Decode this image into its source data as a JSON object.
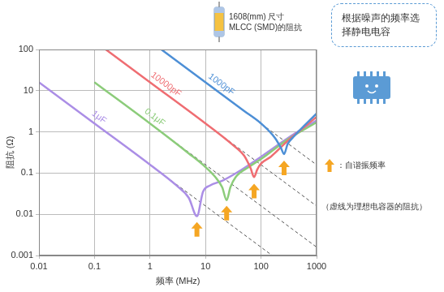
{
  "chart_data": {
    "type": "line",
    "title": [
      "1608(mm) 尺寸",
      "MLCC (SMD)的阻抗"
    ],
    "annotations": [
      "根据噪声的频率选择静电电容",
      "（虚线为理想电容器的阻抗）"
    ],
    "x_label": "频率 (MHz)",
    "y_label": "阻抗 (Ω)",
    "log": true,
    "grid": true,
    "legend": "right",
    "xlim": [
      0.01,
      1000
    ],
    "ylim": [
      0.001,
      100
    ],
    "xticks": [
      0.01,
      0.1,
      1,
      10,
      100,
      1000
    ],
    "yticks": [
      0.001,
      0.01,
      0.1,
      1,
      10,
      100
    ],
    "series": [
      {
        "name": "1000pF",
        "color": "#4d8fd6",
        "line_style": "solid",
        "x": [
          1.6,
          10,
          50,
          100,
          180,
          230,
          260,
          300,
          400,
          1000
        ],
        "values": [
          100,
          16,
          3.2,
          1.6,
          0.7,
          0.4,
          0.29,
          0.5,
          0.8,
          2.8
        ]
      },
      {
        "name": "10000pF",
        "color": "#ef6d72",
        "line_style": "solid",
        "x": [
          0.16,
          1,
          10,
          30,
          50,
          65,
          75,
          85,
          100,
          150,
          300,
          1000
        ],
        "values": [
          100,
          16,
          1.6,
          0.5,
          0.26,
          0.13,
          0.08,
          0.12,
          0.17,
          0.25,
          0.6,
          2.3
        ]
      },
      {
        "name": "0.1μF",
        "color": "#8ccc7a",
        "line_style": "solid",
        "x": [
          0.1,
          1,
          5,
          10,
          15,
          20,
          24,
          28,
          35,
          60,
          100,
          300,
          1000
        ],
        "values": [
          16,
          1.6,
          0.3,
          0.14,
          0.08,
          0.045,
          0.022,
          0.045,
          0.08,
          0.14,
          0.22,
          0.65,
          1.7
        ]
      },
      {
        "name": "1μF",
        "color": "#ab8ee6",
        "line_style": "solid",
        "x": [
          0.01,
          0.1,
          1,
          3,
          5,
          7,
          9,
          12,
          20,
          40,
          100,
          300,
          1000
        ],
        "values": [
          16,
          1.6,
          0.16,
          0.05,
          0.025,
          0.009,
          0.035,
          0.05,
          0.065,
          0.11,
          0.25,
          0.7,
          1.9
        ]
      },
      {
        "color": "#555555",
        "line_style": "dashed",
        "x": [
          1.59,
          1000
        ],
        "values": [
          100,
          0.159
        ]
      },
      {
        "color": "#555555",
        "line_style": "dashed",
        "x": [
          0.159,
          1000
        ],
        "values": [
          100,
          0.0159
        ]
      },
      {
        "color": "#555555",
        "line_style": "dashed",
        "x": [
          0.1,
          1000
        ],
        "values": [
          15.9,
          0.0016
        ]
      },
      {
        "color": "#555555",
        "line_style": "dashed",
        "x": [
          0.01,
          159
        ],
        "values": [
          15.9,
          0.001
        ]
      },
      {
        "name": "：自谐振频率",
        "color": "#f5a623",
        "marker": "arrow",
        "type": "scatter",
        "x": [
          7,
          24,
          75,
          260
        ],
        "values": [
          0.0065,
          0.016,
          0.055,
          0.2
        ]
      }
    ]
  }
}
